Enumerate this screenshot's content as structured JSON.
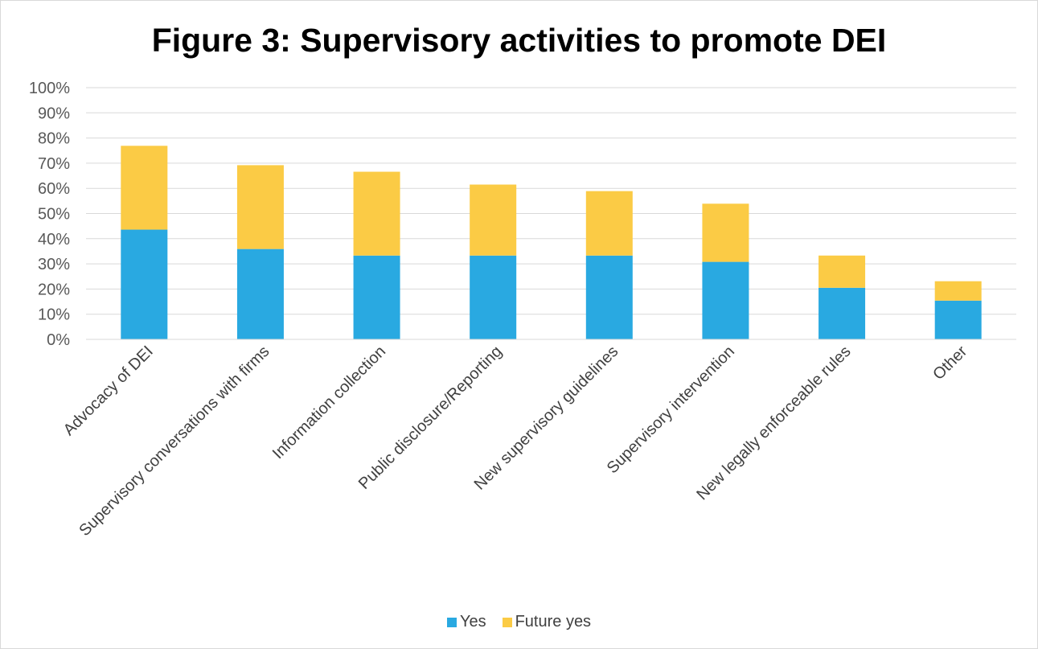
{
  "chart_data": {
    "type": "bar",
    "stacked": true,
    "title": "Figure 3: Supervisory activities to promote DEI",
    "xlabel": "",
    "ylabel": "",
    "ylim": [
      0,
      1
    ],
    "yticks": [
      "0%",
      "10%",
      "20%",
      "30%",
      "40%",
      "50%",
      "60%",
      "70%",
      "80%",
      "90%",
      "100%"
    ],
    "grid": true,
    "legend_position": "bottom",
    "categories": [
      "Advocacy of DEI",
      "Supervisory conversations with firms",
      "Information collection",
      "Public disclosure/Reporting",
      "New supervisory guidelines",
      "Supervisory intervention",
      "New legally enforceable rules",
      "Other"
    ],
    "series": [
      {
        "name": "Yes",
        "color": "#29a9e1",
        "values": [
          0.436,
          0.359,
          0.333,
          0.333,
          0.333,
          0.308,
          0.205,
          0.154
        ]
      },
      {
        "name": "Future yes",
        "color": "#fbcb45",
        "values": [
          0.333,
          0.333,
          0.333,
          0.282,
          0.256,
          0.231,
          0.128,
          0.077
        ]
      }
    ]
  }
}
